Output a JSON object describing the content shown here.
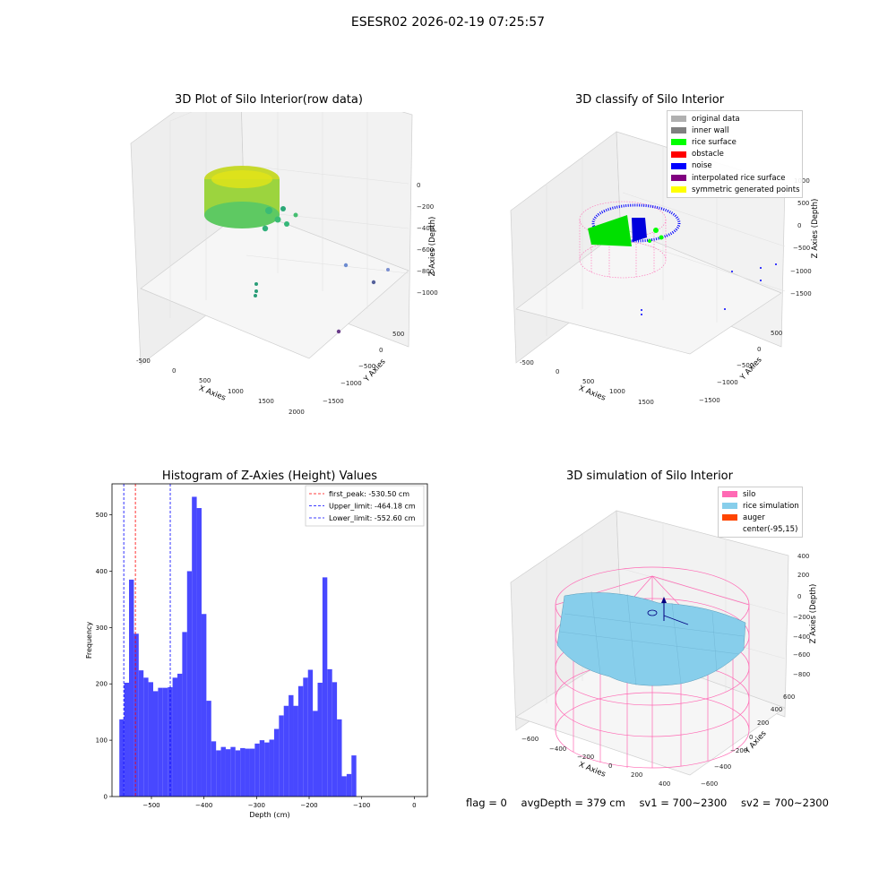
{
  "suptitle": "ESESR02 2026-02-19 07:25:57",
  "colors": {
    "hist_bar": "#4848ff",
    "peak_line": "#ff0000",
    "limit_line": "#0000ff",
    "silo": "#ff69b4",
    "rice": "#87ceeb",
    "auger": "#ff4500",
    "noise": "#0000ff",
    "rice_surface": "#00ff00",
    "original": "#b0b0b0",
    "inner_wall": "#808080",
    "obstacle": "#ff0000",
    "interp": "#800080",
    "sym": "#ffff00"
  },
  "panel_raw": {
    "title": "3D Plot of Silo Interior(row data)",
    "xlabel": "X Axies",
    "ylabel": "Y Axies",
    "zlabel": "Z Axies (Depth)",
    "xticks": [
      "-500",
      "0",
      "500",
      "1000",
      "1500",
      "2000"
    ],
    "yticks": [
      "500",
      "0",
      "−500",
      "−1000",
      "−1500"
    ],
    "zticks": [
      "0",
      "−200",
      "−400",
      "−600",
      "−800",
      "−1000"
    ]
  },
  "panel_classify": {
    "title": "3D classify of Silo Interior",
    "xlabel": "X Axies",
    "ylabel": "Y Axies",
    "zlabel": "Z Axies (Depth)",
    "xticks": [
      "-500",
      "0",
      "500",
      "1000",
      "1500"
    ],
    "yticks": [
      "500",
      "0",
      "−500",
      "−1000",
      "−1500"
    ],
    "zticks": [
      "1000",
      "500",
      "0",
      "−500",
      "−1000",
      "−1500"
    ],
    "legend": [
      {
        "label": "original data",
        "color": "#b0b0b0"
      },
      {
        "label": "inner wall",
        "color": "#808080"
      },
      {
        "label": "rice surface",
        "color": "#00ff00"
      },
      {
        "label": "obstacle",
        "color": "#ff0000"
      },
      {
        "label": "noise",
        "color": "#0000ff"
      },
      {
        "label": "interpolated rice surface",
        "color": "#800080"
      },
      {
        "label": "symmetric generated points",
        "color": "#ffff00"
      }
    ]
  },
  "panel_sim": {
    "title": "3D simulation of Silo Interior",
    "xlabel": "X Axies",
    "ylabel": "Y Axies",
    "zlabel": "Z Axies (Depth)",
    "xticks": [
      "−600",
      "−400",
      "−200",
      "0",
      "200",
      "400"
    ],
    "yticks": [
      "600",
      "400",
      "200",
      "0",
      "−200",
      "−400",
      "−600"
    ],
    "zticks": [
      "400",
      "200",
      "0",
      "−200",
      "−400",
      "−600",
      "−800"
    ],
    "legend": [
      {
        "label": "silo",
        "color": "#ff69b4"
      },
      {
        "label": "rice simulation",
        "color": "#87ceeb"
      },
      {
        "label": "auger",
        "color": "#ff4500"
      },
      {
        "label": "center(-95,15)",
        "color": ""
      }
    ]
  },
  "footer": {
    "flag": "flag = 0",
    "avg": "avgDepth = 379 cm",
    "sv1": "sv1 = 700~2300",
    "sv2": "sv2 = 700~2300"
  },
  "chart_data": {
    "type": "bar",
    "title": "Histogram of Z-Axies (Height) Values",
    "xlabel": "Depth (cm)",
    "ylabel": "Frequency",
    "xlim": [
      -575,
      25
    ],
    "ylim": [
      0,
      555
    ],
    "xticks": [
      -500,
      -400,
      -300,
      -200,
      -100,
      0
    ],
    "yticks": [
      0,
      100,
      200,
      300,
      400,
      500
    ],
    "bin_start": -561,
    "bin_width": 9.2,
    "values": [
      137,
      202,
      385,
      289,
      224,
      211,
      203,
      187,
      193,
      193,
      194,
      211,
      218,
      292,
      400,
      532,
      512,
      324,
      170,
      98,
      82,
      88,
      84,
      88,
      82,
      86,
      85,
      85,
      94,
      100,
      96,
      101,
      120,
      144,
      161,
      180,
      161,
      196,
      211,
      225,
      152,
      202,
      389,
      226,
      203,
      137,
      36,
      40,
      73
    ],
    "vlines": [
      {
        "label": "first_peak: -530.50 cm",
        "x": -530.5,
        "color": "#ff0000"
      },
      {
        "label": "Upper_limit: -464.18 cm",
        "x": -464.18,
        "color": "#0000ff"
      },
      {
        "label": "Lower_limit: -552.60 cm",
        "x": -552.6,
        "color": "#0000ff"
      }
    ],
    "legend_position": "top-right"
  }
}
